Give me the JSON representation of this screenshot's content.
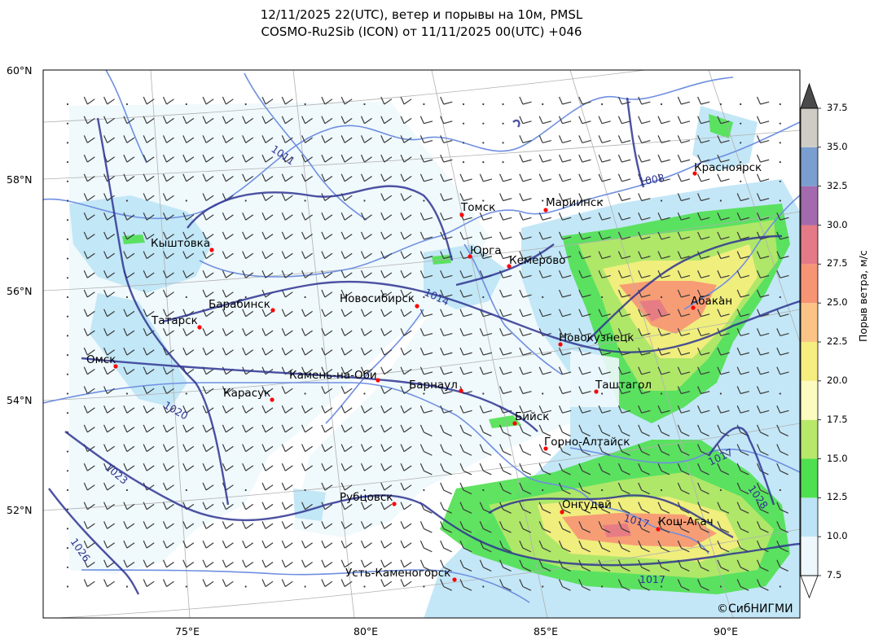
{
  "title": {
    "line1": "12/11/2025 22(UTC), ветер и порывы на 10м, PMSL",
    "line2": "COSMO-Ru2Sib (ICON) от 11/11/2025 00(UTC) +046"
  },
  "lat_labels": [
    "60°N",
    "58°N",
    "56°N",
    "54°N",
    "52°N"
  ],
  "lon_labels": [
    "75°E",
    "80°E",
    "85°E",
    "90°E"
  ],
  "colorbar": {
    "title": "Порыв ветра, м/с",
    "ticks": [
      "7.5",
      "10.0",
      "12.5",
      "15.0",
      "17.5",
      "20.0",
      "22.5",
      "25.0",
      "27.5",
      "30.0",
      "32.5",
      "35.0",
      "37.5"
    ],
    "colors": [
      "#eef8fc",
      "#bde4f6",
      "#4fe04f",
      "#b8e86a",
      "#fdfcc0",
      "#f7ee80",
      "#fbc486",
      "#f79474",
      "#e47a86",
      "#a36aad",
      "#7a9ed0",
      "#cfccc6"
    ],
    "over_color": "#4a4a4a",
    "under_color": "#ffffff"
  },
  "cities": [
    {
      "name": "Красноярск"
    },
    {
      "name": "Томск"
    },
    {
      "name": "Мариинск"
    },
    {
      "name": "Кыштовка"
    },
    {
      "name": "Юрга"
    },
    {
      "name": "Кемерово"
    },
    {
      "name": "Абакан"
    },
    {
      "name": "Новосибирск"
    },
    {
      "name": "Барабинск"
    },
    {
      "name": "Татарск"
    },
    {
      "name": "Новокузнецк"
    },
    {
      "name": "Омск"
    },
    {
      "name": "Камень-на-Оби"
    },
    {
      "name": "Барнаул"
    },
    {
      "name": "Таштагол"
    },
    {
      "name": "Карасук"
    },
    {
      "name": "Бийск"
    },
    {
      "name": "Горно-Алтайск"
    },
    {
      "name": "Рубцовск"
    },
    {
      "name": "Онгудай"
    },
    {
      "name": "Кош-Агач"
    },
    {
      "name": "Усть-Каменогорск"
    }
  ],
  "isobar_labels": [
    "1011",
    "1008",
    "1014",
    "1017",
    "1020",
    "1023",
    "1026",
    "1017",
    "1028",
    "1017",
    "1023"
  ],
  "credit": "©СибНИГМИ",
  "colors": {
    "isobar": "#2e3490",
    "border": "#6f8fe0",
    "city_dot": "#ff0000",
    "barb": "#3a3a3a",
    "grid": "#b0b0b0"
  }
}
